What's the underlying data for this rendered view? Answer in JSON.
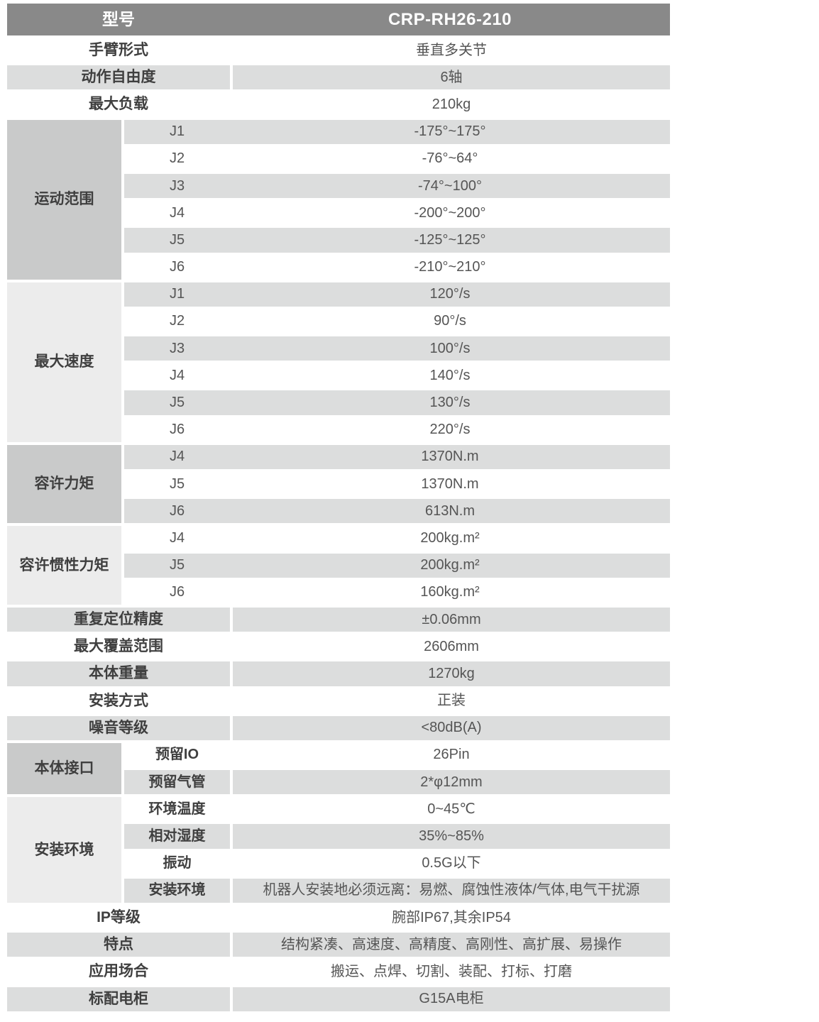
{
  "colors": {
    "header_bg": "#898989",
    "stripe": "#dcdddd",
    "cat_dark": "#c9caca",
    "cat_light": "#ececec",
    "label_color": "#3f3f3f",
    "value_color": "#555555"
  },
  "table": {
    "header": {
      "label": "型号",
      "value": "CRP-RH26-210"
    },
    "arm_type": {
      "label": "手臂形式",
      "value": "垂直多关节"
    },
    "dof": {
      "label": "动作自由度",
      "value": "6轴"
    },
    "max_payload": {
      "label": "最大负载",
      "value": "210kg"
    },
    "motion_range": {
      "category": "运动范围",
      "joints": [
        {
          "joint": "J1",
          "value": "-175°~175°"
        },
        {
          "joint": "J2",
          "value": "-76°~64°"
        },
        {
          "joint": "J3",
          "value": "-74°~100°"
        },
        {
          "joint": "J4",
          "value": "-200°~200°"
        },
        {
          "joint": "J5",
          "value": "-125°~125°"
        },
        {
          "joint": "J6",
          "value": "-210°~210°"
        }
      ]
    },
    "max_speed": {
      "category": "最大速度",
      "joints": [
        {
          "joint": "J1",
          "value": "120°/s"
        },
        {
          "joint": "J2",
          "value": "90°/s"
        },
        {
          "joint": "J3",
          "value": "100°/s"
        },
        {
          "joint": "J4",
          "value": "140°/s"
        },
        {
          "joint": "J5",
          "value": "130°/s"
        },
        {
          "joint": "J6",
          "value": "220°/s"
        }
      ]
    },
    "allowable_torque": {
      "category": "容许力矩",
      "joints": [
        {
          "joint": "J4",
          "value": "1370N.m"
        },
        {
          "joint": "J5",
          "value": "1370N.m"
        },
        {
          "joint": "J6",
          "value": "613N.m"
        }
      ]
    },
    "allowable_inertia": {
      "category": "容许惯性力矩",
      "joints": [
        {
          "joint": "J4",
          "value": "200kg.m²"
        },
        {
          "joint": "J5",
          "value": "200kg.m²"
        },
        {
          "joint": "J6",
          "value": "160kg.m²"
        }
      ]
    },
    "repeatability": {
      "label": "重复定位精度",
      "value": "±0.06mm"
    },
    "max_reach": {
      "label": "最大覆盖范围",
      "value": "2606mm"
    },
    "body_weight": {
      "label": "本体重量",
      "value": "1270kg"
    },
    "mounting": {
      "label": "安装方式",
      "value": "正装"
    },
    "noise_level": {
      "label": "噪音等级",
      "value": "<80dB(A)"
    },
    "body_interface": {
      "category": "本体接口",
      "items": [
        {
          "label": "预留IO",
          "value": "26Pin"
        },
        {
          "label": "预留气管",
          "value": "2*φ12mm"
        }
      ]
    },
    "install_env": {
      "category": "安装环境",
      "items": [
        {
          "label": "环境温度",
          "value": "0~45℃"
        },
        {
          "label": "相对湿度",
          "value": "35%~85%"
        },
        {
          "label": "振动",
          "value": "0.5G以下"
        },
        {
          "label": "安装环境",
          "value": "机器人安装地必须远离：易燃、腐蚀性液体/气体,电气干扰源"
        }
      ]
    },
    "ip_rating": {
      "label": "IP等级",
      "value": "腕部IP67,其余IP54"
    },
    "features": {
      "label": "特点",
      "value": "结构紧凑、高速度、高精度、高刚性、高扩展、易操作"
    },
    "applications": {
      "label": "应用场合",
      "value": "搬运、点焊、切割、装配、打标、打磨"
    },
    "standard_cabinet": {
      "label": "标配电柜",
      "value": "G15A电柜"
    }
  }
}
